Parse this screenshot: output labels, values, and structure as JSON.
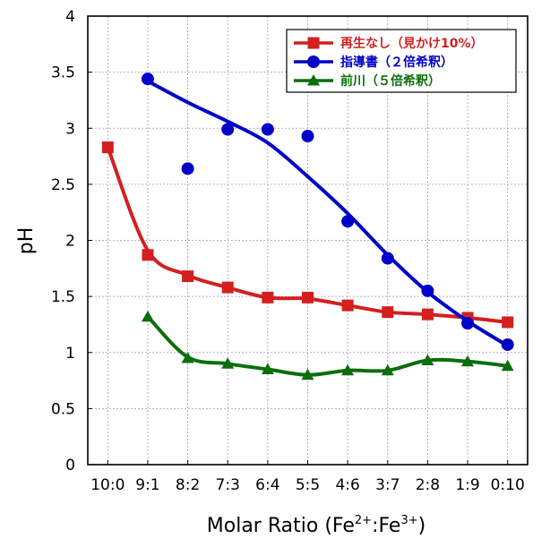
{
  "chart_data": {
    "type": "line",
    "categories": [
      "10:0",
      "9:1",
      "8:2",
      "7:3",
      "6:4",
      "5:5",
      "4:6",
      "3:7",
      "2:8",
      "1:9",
      "0:10"
    ],
    "xlabel_base": "Molar Ratio (Fe",
    "xlabel_sup1": "2+",
    "xlabel_mid": ":Fe",
    "xlabel_sup2": "3+",
    "xlabel_end": ")",
    "ylabel": "pH",
    "ylim": [
      0,
      4
    ],
    "yticks": [
      "0",
      "0.5",
      "1",
      "1.5",
      "2",
      "2.5",
      "3",
      "3.5",
      "4"
    ],
    "grid": true,
    "legend_position": "top-right",
    "series": [
      {
        "name": "再生なし（見かけ10%）",
        "color": "#d41f1f",
        "marker": "square",
        "values": [
          2.83,
          1.87,
          1.68,
          1.58,
          1.49,
          1.49,
          1.42,
          1.36,
          1.34,
          1.31,
          1.27
        ],
        "curve": [
          2.83,
          1.91,
          1.69,
          1.58,
          1.49,
          1.48,
          1.42,
          1.36,
          1.34,
          1.31,
          1.27
        ]
      },
      {
        "name": "指導書（２倍希釈）",
        "color": "#0000c8",
        "marker": "circle",
        "values": [
          null,
          3.44,
          2.64,
          2.99,
          2.99,
          2.93,
          2.17,
          1.84,
          1.55,
          1.26,
          1.07
        ],
        "curve": [
          null,
          3.42,
          3.23,
          3.06,
          2.87,
          2.57,
          2.24,
          1.87,
          1.54,
          1.28,
          1.06
        ]
      },
      {
        "name": "前川（５倍希釈）",
        "color": "#0c6e0c",
        "marker": "triangle",
        "values": [
          null,
          1.32,
          0.95,
          0.9,
          0.85,
          0.8,
          0.84,
          0.84,
          0.93,
          0.92,
          0.88
        ],
        "curve": [
          null,
          1.32,
          0.96,
          0.9,
          0.85,
          0.8,
          0.84,
          0.84,
          0.93,
          0.92,
          0.88
        ]
      }
    ]
  }
}
